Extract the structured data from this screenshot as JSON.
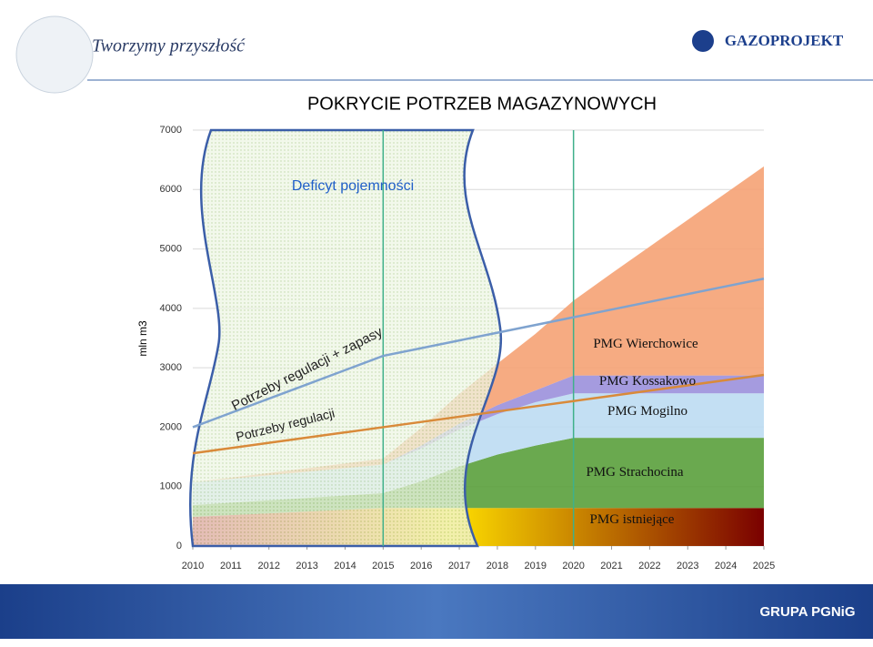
{
  "header": {
    "slogan": "Tworzymy przyszłość",
    "logo": "GAZOPROJEKT"
  },
  "footer": {
    "logo": "GRUPA PGNiG"
  },
  "chart_data": {
    "type": "area",
    "title": "POKRYCIE POTRZEB MAGAZYNOWYCH",
    "y_label": "mln m3",
    "x": [
      2010,
      2011,
      2012,
      2013,
      2014,
      2015,
      2016,
      2017,
      2018,
      2019,
      2020,
      2021,
      2022,
      2023,
      2024,
      2025
    ],
    "xlim": [
      2010,
      2025
    ],
    "xticks": [
      2010,
      2011,
      2012,
      2013,
      2014,
      2015,
      2016,
      2017,
      2018,
      2019,
      2020,
      2021,
      2022,
      2023,
      2024,
      2025
    ],
    "ylim": [
      0,
      7000
    ],
    "yticks": [
      0,
      1000,
      2000,
      3000,
      4000,
      5000,
      6000,
      7000
    ],
    "grid": true,
    "series": [
      {
        "name": "PMG istniejące",
        "color": "#e8820f",
        "values": [
          490,
          520,
          550,
          580,
          610,
          640,
          640,
          640,
          640,
          640,
          640,
          640,
          640,
          640,
          640,
          640
        ]
      },
      {
        "name": "PMG Strachocina",
        "color": "#5aa03c",
        "values": [
          200,
          210,
          220,
          230,
          240,
          250,
          450,
          700,
          900,
          1050,
          1180,
          1180,
          1180,
          1180,
          1180,
          1180
        ]
      },
      {
        "name": "PMG Mogilno",
        "color": "#bcdcf2",
        "values": [
          380,
          400,
          420,
          440,
          460,
          480,
          550,
          620,
          680,
          730,
          750,
          750,
          750,
          750,
          750,
          750
        ]
      },
      {
        "name": "PMG Kossakowo",
        "color": "#9b90dc",
        "values": [
          0,
          0,
          0,
          0,
          0,
          0,
          50,
          100,
          150,
          200,
          300,
          300,
          300,
          300,
          300,
          300
        ]
      },
      {
        "name": "PMG Wierchowice",
        "color": "#f5a274",
        "values": [
          0,
          20,
          40,
          60,
          80,
          100,
          300,
          500,
          700,
          950,
          1260,
          1720,
          2170,
          2620,
          3070,
          3520
        ]
      }
    ],
    "lines": [
      {
        "name": "Potrzeby regulacji",
        "color": "#d98a3a",
        "values": [
          1560,
          1648,
          1736,
          1824,
          1912,
          2000,
          2088,
          2176,
          2264,
          2352,
          2440,
          2528,
          2616,
          2704,
          2792,
          2880
        ]
      },
      {
        "name": "Potrzeby regulacji + zapasy",
        "color": "#7fa3cf",
        "values": [
          2000,
          2240,
          2480,
          2720,
          2960,
          3200,
          3330,
          3460,
          3590,
          3720,
          3850,
          3980,
          4110,
          4240,
          4370,
          4500
        ]
      }
    ],
    "annotations": [
      "Deficyt pojemności"
    ]
  }
}
